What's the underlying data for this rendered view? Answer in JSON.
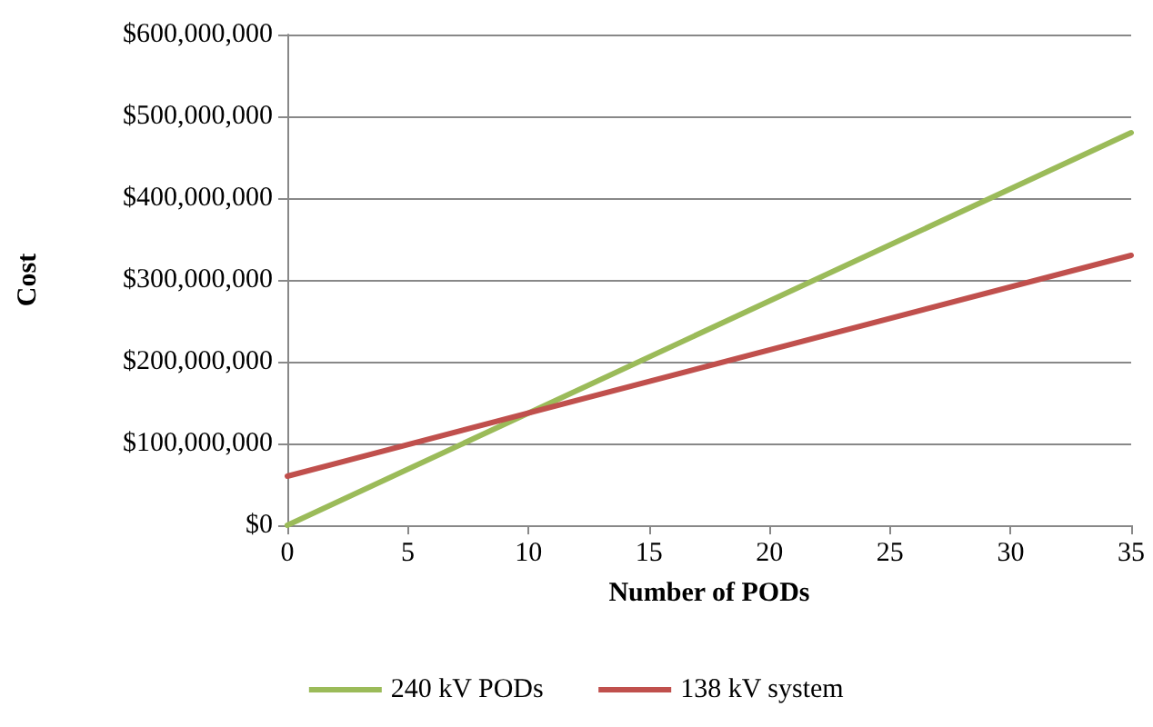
{
  "chart_data": {
    "type": "line",
    "xlabel": "Number of PODs",
    "ylabel": "Cost",
    "x": [
      0,
      35
    ],
    "series": [
      {
        "name": "240 kV PODs",
        "color": "#9bbb59",
        "values": [
          0,
          480000000
        ]
      },
      {
        "name": "138 kV system",
        "color": "#c0504d",
        "values": [
          60000000,
          330000000
        ]
      }
    ],
    "xlim": [
      0,
      35
    ],
    "xticks": [
      0,
      5,
      10,
      15,
      20,
      25,
      30,
      35
    ],
    "ylim": [
      0,
      600000000
    ],
    "yticks": [
      {
        "value": 0,
        "label": "$0"
      },
      {
        "value": 100000000,
        "label": "$100,000,000"
      },
      {
        "value": 200000000,
        "label": "$200,000,000"
      },
      {
        "value": 300000000,
        "label": "$300,000,000"
      },
      {
        "value": 400000000,
        "label": "$400,000,000"
      },
      {
        "value": 500000000,
        "label": "$500,000,000"
      },
      {
        "value": 600000000,
        "label": "$600,000,000"
      }
    ],
    "grid": "y",
    "legend": "bottom",
    "marker": "none",
    "line_style": "solid"
  }
}
